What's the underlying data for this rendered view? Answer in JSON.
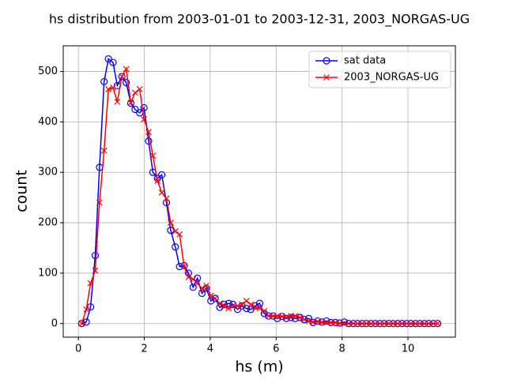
{
  "chart_data": {
    "type": "line",
    "title": "hs distribution from 2003-01-01 to 2003-12-31, 2003_NORGAS-UG",
    "xlabel": "hs (m)",
    "ylabel": "count",
    "x": [
      0.1,
      0.24,
      0.37,
      0.51,
      0.64,
      0.78,
      0.91,
      1.05,
      1.18,
      1.32,
      1.45,
      1.59,
      1.72,
      1.86,
      1.99,
      2.13,
      2.26,
      2.4,
      2.53,
      2.67,
      2.8,
      2.94,
      3.07,
      3.21,
      3.34,
      3.48,
      3.61,
      3.75,
      3.88,
      4.02,
      4.15,
      4.29,
      4.42,
      4.56,
      4.69,
      4.83,
      4.96,
      5.1,
      5.23,
      5.37,
      5.5,
      5.64,
      5.77,
      5.91,
      6.04,
      6.18,
      6.31,
      6.45,
      6.58,
      6.72,
      6.85,
      6.99,
      7.12,
      7.26,
      7.39,
      7.53,
      7.66,
      7.8,
      7.93,
      8.07,
      8.2,
      8.34,
      8.47,
      8.61,
      8.74,
      8.88,
      9.01,
      9.15,
      9.28,
      9.42,
      9.55,
      9.69,
      9.82,
      9.96,
      10.09,
      10.23,
      10.36,
      10.5,
      10.63,
      10.77,
      10.9
    ],
    "series": [
      {
        "name": "sat data",
        "color": "#0000ff",
        "marker": "circle",
        "values": [
          0,
          3,
          33,
          135,
          310,
          480,
          525,
          518,
          472,
          490,
          478,
          437,
          425,
          418,
          428,
          362,
          300,
          288,
          295,
          240,
          185,
          152,
          113,
          115,
          100,
          72,
          90,
          60,
          70,
          45,
          50,
          32,
          38,
          40,
          38,
          28,
          35,
          30,
          28,
          35,
          40,
          20,
          15,
          15,
          10,
          14,
          10,
          12,
          10,
          12,
          8,
          10,
          2,
          5,
          3,
          5,
          2,
          2,
          1,
          3,
          0,
          0,
          0,
          0,
          0,
          0,
          0,
          0,
          0,
          0,
          0,
          0,
          0,
          0,
          0,
          0,
          0,
          0,
          0,
          0,
          0
        ]
      },
      {
        "name": "2003_NORGAS-UG",
        "color": "#ff0000",
        "marker": "x",
        "values": [
          0,
          28,
          80,
          105,
          240,
          343,
          465,
          468,
          440,
          490,
          505,
          438,
          458,
          465,
          405,
          380,
          333,
          283,
          260,
          248,
          200,
          183,
          177,
          113,
          92,
          88,
          80,
          70,
          75,
          55,
          50,
          40,
          35,
          30,
          35,
          35,
          38,
          45,
          38,
          32,
          30,
          25,
          15,
          15,
          15,
          14,
          12,
          15,
          15,
          12,
          8,
          5,
          3,
          4,
          2,
          2,
          2,
          2,
          0,
          0,
          0,
          0,
          0,
          0,
          0,
          0,
          0,
          0,
          0,
          0,
          0,
          0,
          0,
          0,
          0,
          0,
          0,
          0,
          0,
          0,
          0
        ]
      }
    ],
    "xlim": [
      -0.46,
      11.44
    ],
    "ylim": [
      -27,
      551
    ],
    "xticks": [
      0,
      2,
      4,
      6,
      8,
      10
    ],
    "yticks": [
      0,
      100,
      200,
      300,
      400,
      500
    ],
    "grid": true,
    "legend": "upper right"
  }
}
